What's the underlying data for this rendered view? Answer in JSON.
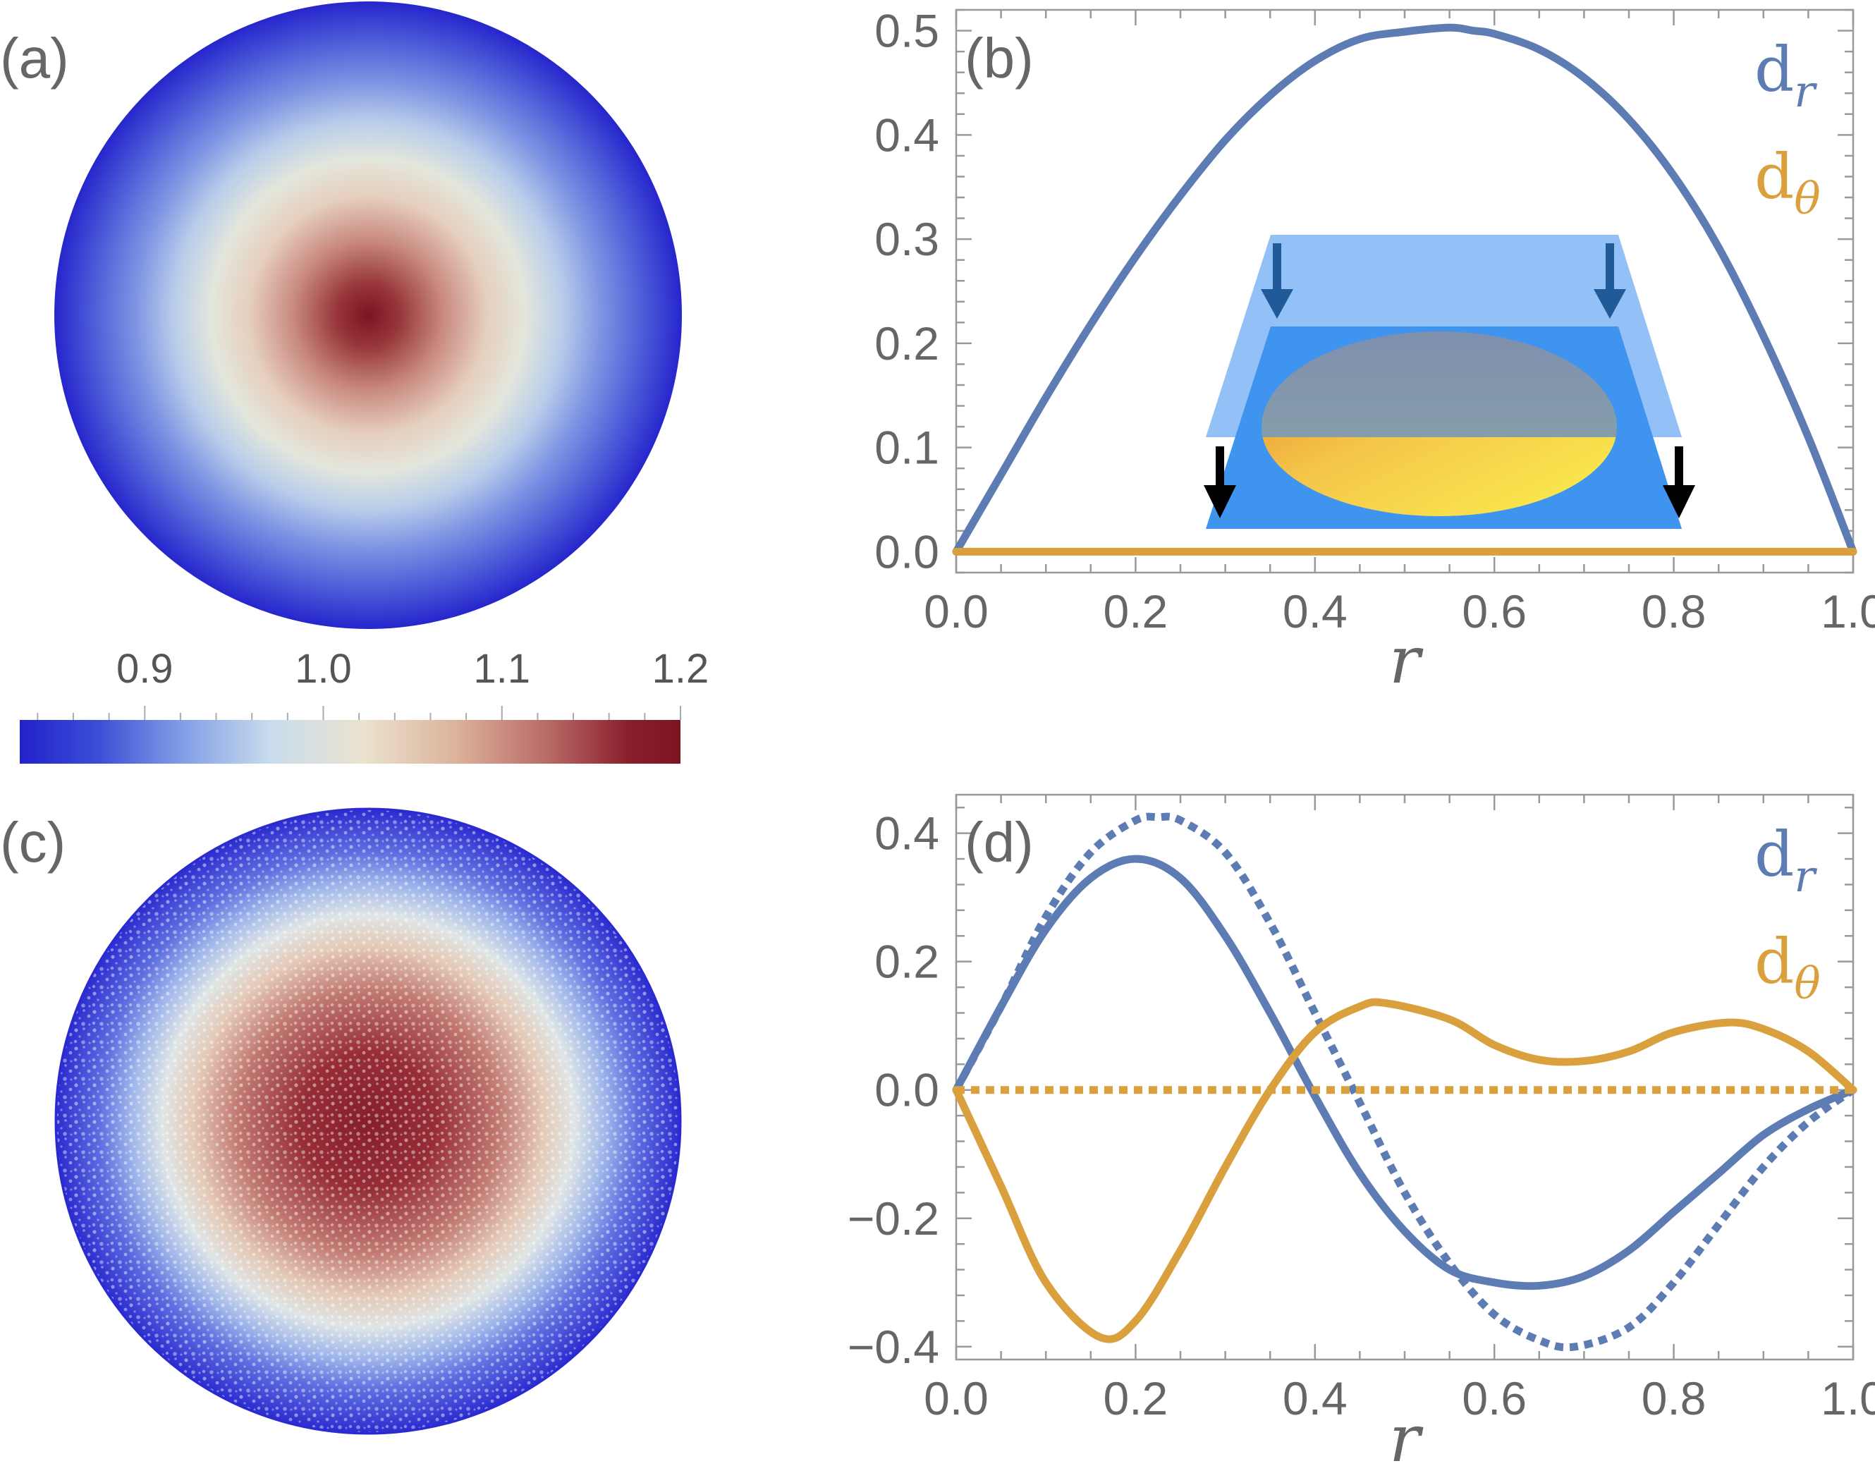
{
  "colors": {
    "dr": "#5d7cb3",
    "dtheta": "#daa03d",
    "axis": "#999999",
    "text": "#666666",
    "colormap": [
      "#2222cc",
      "#3b4fd6",
      "#7f9be6",
      "#c9dcec",
      "#eae3cf",
      "#dcb29b",
      "#b86a66",
      "#8a1f2c",
      "#7c1422"
    ]
  },
  "panel_a": {
    "tag": "(a)",
    "colorbar": {
      "min": 0.83,
      "max": 1.2,
      "labels": [
        "0.9",
        "1.0",
        "1.1",
        "1.2"
      ],
      "label_values": [
        0.9,
        1.0,
        1.1,
        1.2
      ]
    },
    "disk_center_value": 1.2,
    "disk_edge_value": 0.83
  },
  "panel_c": {
    "tag": "(c)",
    "disk_center_value": 1.15,
    "disk_edge_value": 0.83,
    "texture": "granular"
  },
  "chart_data": [
    {
      "panel": "(b)",
      "type": "line",
      "xlabel": "r",
      "ylabel": "",
      "xlim": [
        0,
        1
      ],
      "ylim": [
        -0.02,
        0.52
      ],
      "x_ticks": [
        "0.0",
        "0.2",
        "0.4",
        "0.6",
        "0.8",
        "1.0"
      ],
      "x_tick_values": [
        0,
        0.2,
        0.4,
        0.6,
        0.8,
        1.0
      ],
      "y_ticks": [
        "0.0",
        "0.1",
        "0.2",
        "0.3",
        "0.4",
        "0.5"
      ],
      "y_tick_values": [
        0,
        0.1,
        0.2,
        0.3,
        0.4,
        0.5
      ],
      "legend": [
        {
          "main": "d",
          "sub": "r",
          "color": "#5d7cb3"
        },
        {
          "main": "d",
          "sub": "θ",
          "color": "#daa03d"
        }
      ],
      "legend_position": "top-right",
      "series": [
        {
          "name": "dr",
          "style": "solid",
          "color": "#5d7cb3",
          "x": [
            0,
            0.05,
            0.1,
            0.15,
            0.2,
            0.25,
            0.3,
            0.35,
            0.4,
            0.45,
            0.5,
            0.55,
            0.577,
            0.6,
            0.65,
            0.7,
            0.75,
            0.8,
            0.85,
            0.9,
            0.95,
            1.0
          ],
          "y": [
            0,
            0.074,
            0.148,
            0.218,
            0.283,
            0.342,
            0.395,
            0.438,
            0.471,
            0.492,
            0.499,
            0.503,
            0.5,
            0.497,
            0.482,
            0.455,
            0.415,
            0.361,
            0.292,
            0.207,
            0.11,
            0
          ]
        },
        {
          "name": "dθ",
          "style": "solid",
          "color": "#daa03d",
          "x": [
            0,
            1
          ],
          "y": [
            0,
            0
          ]
        }
      ],
      "inset": {
        "content": "compressed droplet between two plates",
        "arrows": 4
      }
    },
    {
      "panel": "(d)",
      "type": "line",
      "xlabel": "r",
      "ylabel": "",
      "xlim": [
        0,
        1
      ],
      "ylim": [
        -0.42,
        0.46
      ],
      "x_ticks": [
        "0.0",
        "0.2",
        "0.4",
        "0.6",
        "0.8",
        "1.0"
      ],
      "x_tick_values": [
        0,
        0.2,
        0.4,
        0.6,
        0.8,
        1.0
      ],
      "y_ticks": [
        "−0.4",
        "−0.2",
        "0.0",
        "0.2",
        "0.4"
      ],
      "y_tick_values": [
        -0.4,
        -0.2,
        0,
        0.2,
        0.4
      ],
      "legend": [
        {
          "main": "d",
          "sub": "r",
          "color": "#5d7cb3"
        },
        {
          "main": "d",
          "sub": "θ",
          "color": "#daa03d"
        }
      ],
      "legend_position": "top-right",
      "series": [
        {
          "name": "dr",
          "style": "solid",
          "color": "#5d7cb3",
          "x": [
            0,
            0.05,
            0.1,
            0.15,
            0.2,
            0.25,
            0.3,
            0.35,
            0.4,
            0.45,
            0.5,
            0.55,
            0.6,
            0.65,
            0.7,
            0.75,
            0.8,
            0.85,
            0.9,
            0.95,
            1.0
          ],
          "y": [
            0,
            0.13,
            0.25,
            0.33,
            0.36,
            0.33,
            0.24,
            0.12,
            -0.01,
            -0.13,
            -0.22,
            -0.28,
            -0.3,
            -0.305,
            -0.29,
            -0.25,
            -0.19,
            -0.13,
            -0.07,
            -0.03,
            0
          ]
        },
        {
          "name": "dr (dotted)",
          "style": "dotted",
          "color": "#5d7cb3",
          "x": [
            0,
            0.05,
            0.1,
            0.15,
            0.2,
            0.225,
            0.25,
            0.3,
            0.35,
            0.4,
            0.45,
            0.5,
            0.55,
            0.6,
            0.65,
            0.69,
            0.75,
            0.8,
            0.85,
            0.9,
            0.95,
            1.0
          ],
          "y": [
            0,
            0.13,
            0.27,
            0.37,
            0.42,
            0.425,
            0.42,
            0.37,
            0.26,
            0.12,
            -0.02,
            -0.16,
            -0.27,
            -0.35,
            -0.39,
            -0.4,
            -0.37,
            -0.3,
            -0.21,
            -0.12,
            -0.05,
            0
          ]
        },
        {
          "name": "dθ",
          "style": "solid",
          "color": "#daa03d",
          "x": [
            0,
            0.05,
            0.1,
            0.16,
            0.2,
            0.25,
            0.3,
            0.35,
            0.4,
            0.45,
            0.48,
            0.55,
            0.6,
            0.65,
            0.7,
            0.75,
            0.8,
            0.86,
            0.9,
            0.95,
            1.0
          ],
          "y": [
            0,
            -0.15,
            -0.3,
            -0.385,
            -0.36,
            -0.25,
            -0.12,
            0.0,
            0.09,
            0.13,
            0.135,
            0.11,
            0.07,
            0.047,
            0.045,
            0.06,
            0.09,
            0.105,
            0.095,
            0.06,
            0
          ]
        },
        {
          "name": "dθ (dotted)",
          "style": "dotted",
          "color": "#daa03d",
          "x": [
            0,
            1
          ],
          "y": [
            0,
            0
          ]
        }
      ]
    }
  ]
}
